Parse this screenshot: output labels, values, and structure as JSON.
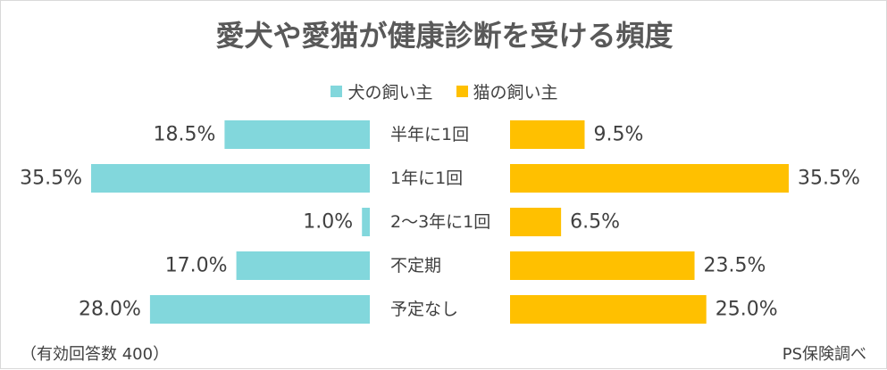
{
  "chart_data": {
    "type": "bar",
    "title": "愛犬や愛猫が健康診断を受ける頻度",
    "categories": [
      "半年に1回",
      "1年に1回",
      "2～3年に1回",
      "不定期",
      "予定なし"
    ],
    "series": [
      {
        "name": "犬の飼い主",
        "values": [
          18.5,
          35.5,
          1.0,
          17.0,
          28.0
        ],
        "labels": [
          "18.5%",
          "35.5%",
          "1.0%",
          "17.0%",
          "28.0%"
        ],
        "color": "#82d7dc"
      },
      {
        "name": "猫の飼い主",
        "values": [
          9.5,
          35.5,
          6.5,
          23.5,
          25.0
        ],
        "labels": [
          "9.5%",
          "35.5%",
          "6.5%",
          "23.5%",
          "25.0%"
        ],
        "color": "#ffc000"
      }
    ],
    "layout_type": "diverging",
    "xlim": [
      0,
      35.5
    ],
    "legend_position": "top-center",
    "grid": false
  },
  "footnote": {
    "left": "（有効回答数 400）",
    "right": "PS保険調べ"
  }
}
